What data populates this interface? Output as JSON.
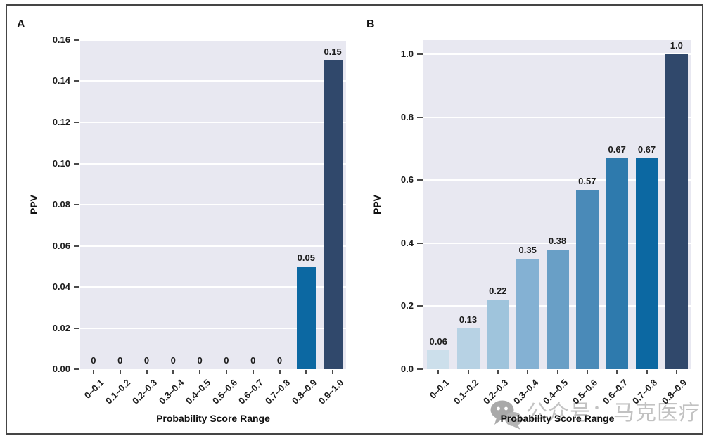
{
  "colors": {
    "plot_bg": "#e8e8f1",
    "gridline": "#ffffff",
    "frame_border": "#454545",
    "tick": "#4a4a4a",
    "text": "#1c1c1c",
    "watermark_text": "#c2c2c2",
    "watermark_icon": "#9b9b9b"
  },
  "watermark": {
    "icon": "wechat-icon",
    "text": "公众号：马克医疗"
  },
  "chart_data": [
    {
      "type": "bar",
      "panel_label": "A",
      "title": "",
      "xlabel": "Probability Score Range",
      "ylabel": "PPV",
      "ylim": [
        0,
        0.16
      ],
      "grid": true,
      "legend_position": "none",
      "categories": [
        "0–0.1",
        "0.1–0.2",
        "0.2–0.3",
        "0.3–0.4",
        "0.4–0.5",
        "0.5–0.6",
        "0.6–0.7",
        "0.7–0.8",
        "0.8–0.9",
        "0.9–1.0"
      ],
      "values": [
        0,
        0,
        0,
        0,
        0,
        0,
        0,
        0,
        0.05,
        0.15
      ],
      "bar_labels": [
        "0",
        "0",
        "0",
        "0",
        "0",
        "0",
        "0",
        "0",
        "0.05",
        "0.15"
      ],
      "bar_colors": [
        null,
        null,
        null,
        null,
        null,
        null,
        null,
        null,
        "#0c68a2",
        "#30486b"
      ],
      "ytick_values": [
        0,
        0.02,
        0.04,
        0.06,
        0.08,
        0.1,
        0.12,
        0.14,
        0.16
      ],
      "ytick_labels": [
        "0.00",
        "0.02",
        "0.04",
        "0.06",
        "0.08",
        "0.10",
        "0.12",
        "0.14",
        "0.16"
      ]
    },
    {
      "type": "bar",
      "panel_label": "B",
      "title": "",
      "xlabel": "Probability Score Range",
      "ylabel": "PPV",
      "ylim": [
        0,
        1.0
      ],
      "grid": true,
      "legend_position": "none",
      "categories": [
        "0–0.1",
        "0.1–0.2",
        "0.2–0.3",
        "0.3–0.4",
        "0.4–0.5",
        "0.5–0.6",
        "0.6–0.7",
        "0.7–0.8",
        "0.8–0.9"
      ],
      "values": [
        0.06,
        0.13,
        0.22,
        0.35,
        0.38,
        0.57,
        0.67,
        0.67,
        1.0
      ],
      "bar_labels": [
        "0.06",
        "0.13",
        "0.22",
        "0.35",
        "0.38",
        "0.57",
        "0.67",
        "0.67",
        "1.0"
      ],
      "bar_colors": [
        "#ccdfeb",
        "#b7d2e4",
        "#9fc4dc",
        "#84b1d3",
        "#699fc6",
        "#4a8ab8",
        "#2e7aad",
        "#0c68a2",
        "#30486b"
      ],
      "ytick_values": [
        0,
        0.2,
        0.4,
        0.6,
        0.8,
        1.0
      ],
      "ytick_labels": [
        "0.0",
        "0.2",
        "0.4",
        "0.6",
        "0.8",
        "1.0"
      ]
    }
  ]
}
